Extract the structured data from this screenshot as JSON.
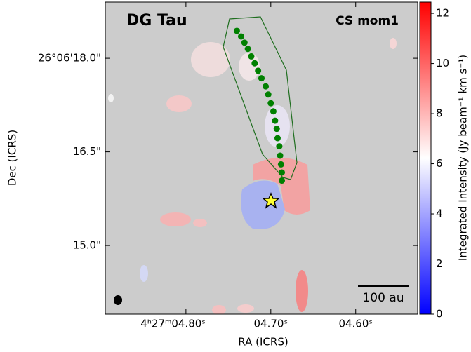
{
  "chart_data": {
    "type": "image",
    "title": "DG Tau",
    "subtitle": "CS mom1",
    "xlabel": "RA (ICRS)",
    "ylabel": "Dec (ICRS)",
    "xlim": [
      4.895,
      4.527
    ],
    "xticks": [
      {
        "value": 4.8,
        "label": "4ʰ27ᵐ04.80ˢ"
      },
      {
        "value": 4.7,
        "label": "04.70ˢ"
      },
      {
        "value": 4.6,
        "label": "04.60ˢ"
      }
    ],
    "ylim": [
      13.9,
      18.9
    ],
    "yticks": [
      {
        "value": 18.0,
        "label": "26°06'18.0\""
      },
      {
        "value": 16.5,
        "label": "16.5\""
      },
      {
        "value": 15.0,
        "label": "15.0\""
      }
    ],
    "colorbar_label": "Integrated Intensity (Jy beam⁻¹ km s⁻¹)",
    "clim": [
      0,
      12.45
    ],
    "cticks": [
      0,
      2,
      4,
      6,
      8,
      10,
      12
    ],
    "scalebar_label": "100 au",
    "series": [
      {
        "color": "#008000",
        "x": [
          4.74,
          4.735,
          4.731,
          4.727,
          4.723,
          4.719,
          4.715,
          4.711,
          4.706,
          4.703,
          4.7,
          4.697,
          4.695,
          4.693,
          4.692,
          4.69,
          4.689,
          4.688,
          4.687,
          4.687
        ],
        "values": [
          18.44,
          18.35,
          18.25,
          18.15,
          18.03,
          17.92,
          17.8,
          17.68,
          17.55,
          17.42,
          17.28,
          17.15,
          17.0,
          16.87,
          16.72,
          16.59,
          16.44,
          16.3,
          16.17,
          16.04
        ]
      }
    ]
  }
}
